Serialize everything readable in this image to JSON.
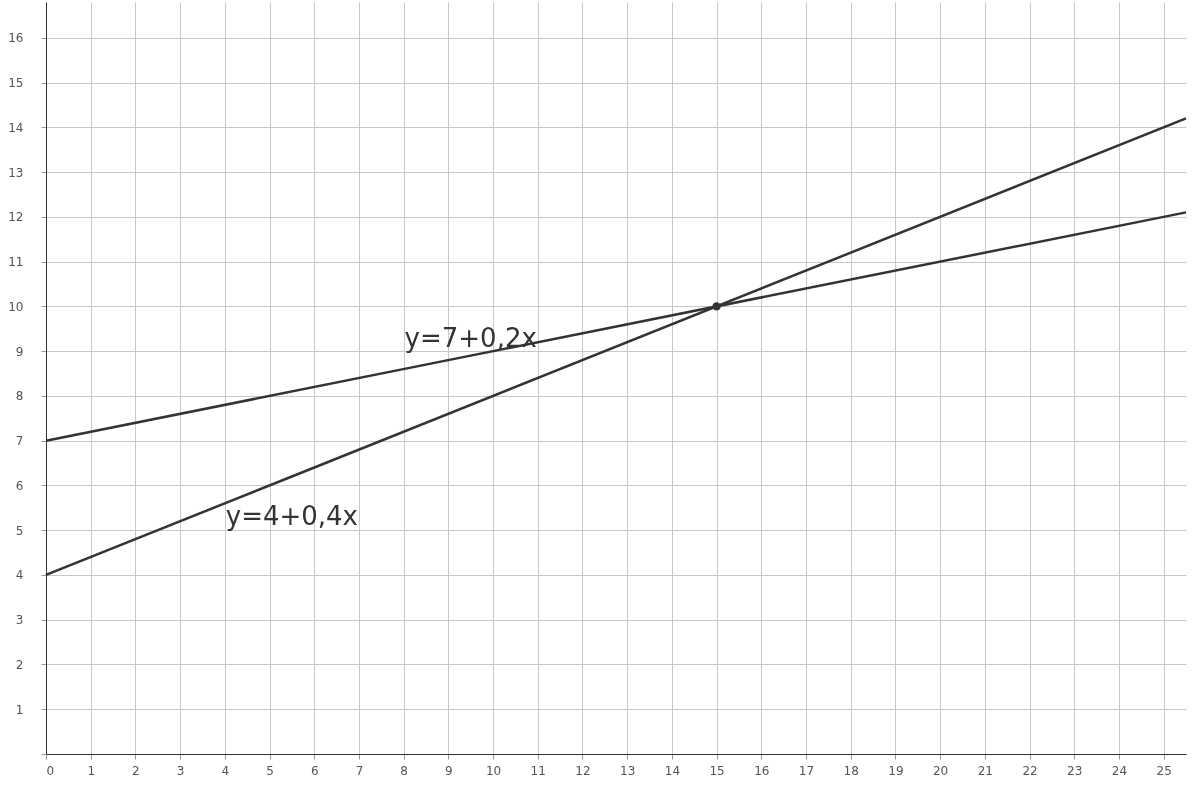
{
  "chart_data": {
    "type": "line",
    "series": [
      {
        "name": "y=7+0,2x",
        "x": [
          0,
          9.5,
          25.5
        ],
        "values": [
          7,
          8.9,
          12.1
        ],
        "color": "#333333"
      },
      {
        "name": "y=4+0,4x",
        "x": [
          0,
          5.5,
          25.5
        ],
        "values": [
          4,
          6.2,
          14.2
        ],
        "color": "#333333"
      },
      {
        "type": "scatter",
        "x": [
          15
        ],
        "values": [
          10
        ],
        "color": "#333333",
        "marker": "circle"
      }
    ],
    "xlim": [
      0,
      25.5
    ],
    "ylim": [
      0,
      16.8
    ],
    "xticks": [
      0,
      1,
      2,
      3,
      4,
      5,
      6,
      7,
      8,
      9,
      10,
      11,
      12,
      13,
      14,
      15,
      16,
      17,
      18,
      19,
      20,
      21,
      22,
      23,
      24,
      25
    ],
    "yticks": [
      {
        "value": 0,
        "label": null
      },
      1,
      2,
      3,
      4,
      5,
      6,
      7,
      8,
      9,
      10,
      11,
      12,
      13,
      14,
      15,
      16
    ],
    "grid": true
  }
}
